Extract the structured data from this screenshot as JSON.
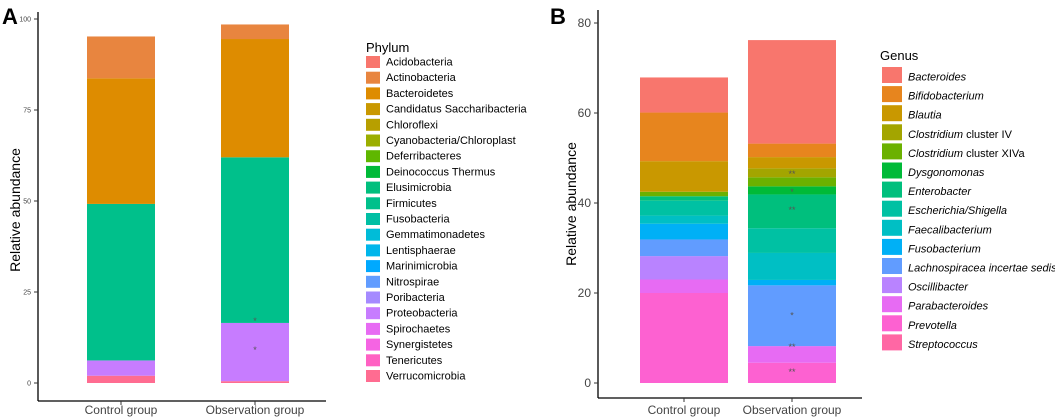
{
  "figure": {
    "panel_a_label": "A",
    "panel_b_label": "B"
  },
  "chart_data": [
    {
      "type": "bar",
      "stacked": true,
      "panel": "A",
      "categories": [
        "Control group",
        "Observation group"
      ],
      "ylabel": "Relative abundance",
      "xlabel": "",
      "ylim": [
        0,
        100
      ],
      "yticks": [
        "0",
        "25",
        "50",
        "75",
        "100"
      ],
      "legend_title": "Phylum",
      "series": [
        {
          "name": "Acidobacteria",
          "color": "#F8766D",
          "values": [
            0,
            0
          ]
        },
        {
          "name": "Actinobacteria",
          "color": "#E8853F",
          "values": [
            11.5,
            4
          ]
        },
        {
          "name": "Bacteroidetes",
          "color": "#DE8C00",
          "values": [
            34.5,
            32.5
          ]
        },
        {
          "name": "Candidatus Saccharibacteria",
          "color": "#C99800",
          "values": [
            0,
            0
          ]
        },
        {
          "name": "Chloroflexi",
          "color": "#B79F00",
          "values": [
            0,
            0
          ]
        },
        {
          "name": "Cyanobacteria/Chloroplast",
          "color": "#9BAE00",
          "values": [
            0,
            0
          ]
        },
        {
          "name": "Deferribacteres",
          "color": "#5FB700",
          "values": [
            0,
            0
          ]
        },
        {
          "name": "Deinococcus Thermus",
          "color": "#00BA38",
          "values": [
            0,
            0
          ]
        },
        {
          "name": "Elusimicrobia",
          "color": "#00BF7D",
          "values": [
            0,
            0
          ]
        },
        {
          "name": "Firmicutes",
          "color": "#00C08B",
          "values": [
            43,
            45.5
          ]
        },
        {
          "name": "Fusobacteria",
          "color": "#00BFA4",
          "values": [
            0,
            0
          ]
        },
        {
          "name": "Gemmatimonadetes",
          "color": "#00BCD8",
          "values": [
            0,
            0
          ]
        },
        {
          "name": "Lentisphaerae",
          "color": "#00B6EB",
          "values": [
            0,
            0
          ]
        },
        {
          "name": "Marinimicrobia",
          "color": "#00A9FF",
          "values": [
            0,
            0
          ]
        },
        {
          "name": "Nitrospirae",
          "color": "#619CFF",
          "values": [
            0,
            0
          ]
        },
        {
          "name": "Poribacteria",
          "color": "#A58AFF",
          "values": [
            0,
            0
          ]
        },
        {
          "name": "Proteobacteria",
          "color": "#C77CFF",
          "values": [
            4.2,
            16
          ]
        },
        {
          "name": "Spirochaetes",
          "color": "#E76BF3",
          "values": [
            0,
            0
          ]
        },
        {
          "name": "Synergistetes",
          "color": "#F564E3",
          "values": [
            0,
            0
          ]
        },
        {
          "name": "Tenericutes",
          "color": "#FF61C3",
          "values": [
            0,
            0
          ]
        },
        {
          "name": "Verrucomicrobia",
          "color": "#FF6C91",
          "values": [
            2,
            0.5
          ]
        }
      ],
      "significance": [
        {
          "category": "Observation group",
          "series": "Firmicutes",
          "mark": "*",
          "value": 17
        },
        {
          "category": "Observation group",
          "series": "Proteobacteria",
          "mark": "*",
          "value": 9
        }
      ]
    },
    {
      "type": "bar",
      "stacked": true,
      "panel": "B",
      "categories": [
        "Control group",
        "Observation group"
      ],
      "ylabel": "Relative abundance",
      "xlabel": "",
      "ylim": [
        0,
        80
      ],
      "yticks": [
        "0",
        "20",
        "40",
        "60",
        "80"
      ],
      "legend_title": "Genus",
      "series": [
        {
          "name": "Bacteroides",
          "name_suffix": "",
          "color": "#F8766D",
          "values": [
            7.8,
            23
          ]
        },
        {
          "name": "Bifidobacterium",
          "name_suffix": "",
          "color": "#E7851E",
          "values": [
            10.8,
            3
          ]
        },
        {
          "name": "Blautia",
          "name_suffix": "",
          "color": "#C99800",
          "values": [
            6.8,
            2.5
          ]
        },
        {
          "name": "Clostridium",
          "name_suffix": " cluster IV",
          "color": "#A3A500",
          "values": [
            0,
            2
          ]
        },
        {
          "name": "Clostridium",
          "name_suffix": " cluster XIVa",
          "color": "#6BB100",
          "values": [
            1,
            2
          ]
        },
        {
          "name": "Dysgonomonas",
          "name_suffix": "",
          "color": "#00BA38",
          "values": [
            0,
            1.8
          ]
        },
        {
          "name": "Enterobacter",
          "name_suffix": "",
          "color": "#00BF7D",
          "values": [
            1,
            7.5
          ]
        },
        {
          "name": "Escherichia/Shigella",
          "name_suffix": "",
          "color": "#00C1A3",
          "values": [
            3.3,
            5.5
          ]
        },
        {
          "name": "Faecalibacterium",
          "name_suffix": "",
          "color": "#00BFC4",
          "values": [
            1.8,
            6
          ]
        },
        {
          "name": "Fusobacterium",
          "name_suffix": "",
          "color": "#00B0F6",
          "values": [
            3.5,
            1.2
          ]
        },
        {
          "name": "Lachnospiracea incertae sedis",
          "name_suffix": "",
          "color": "#619CFF",
          "values": [
            3.7,
            13.5
          ]
        },
        {
          "name": "Oscillibacter",
          "name_suffix": "",
          "color": "#B983FF",
          "values": [
            5.2,
            0
          ]
        },
        {
          "name": "Parabacteroides",
          "name_suffix": "",
          "color": "#E76BF3",
          "values": [
            3,
            3.7
          ]
        },
        {
          "name": "Prevotella",
          "name_suffix": "",
          "color": "#FD61D1",
          "values": [
            20,
            4.5
          ]
        },
        {
          "name": "Streptococcus",
          "name_suffix": "",
          "color": "#FF67A4",
          "values": [
            0,
            0
          ]
        }
      ],
      "significance": [
        {
          "category": "Observation group",
          "series": "Blautia",
          "mark": "**",
          "value": 46.5
        },
        {
          "category": "Observation group",
          "series": "Dysgonomonas",
          "mark": "*",
          "value": 42.5
        },
        {
          "category": "Observation group",
          "series": "Enterobacter",
          "mark": "**",
          "value": 38.5
        },
        {
          "category": "Observation group",
          "series": "Lachnospiracea incertae sedis",
          "mark": "*",
          "value": 15
        },
        {
          "category": "Observation group",
          "series": "Parabacteroides",
          "mark": "**",
          "value": 8
        },
        {
          "category": "Observation group",
          "series": "Prevotella",
          "mark": "**",
          "value": 2.5
        }
      ]
    }
  ]
}
